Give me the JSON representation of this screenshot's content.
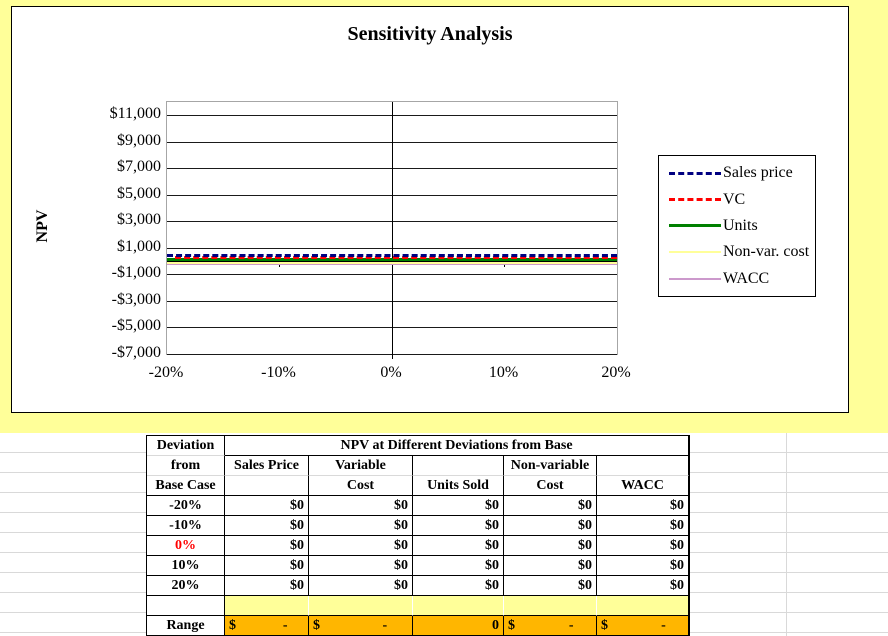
{
  "chart": {
    "title": "Sensitivity Analysis",
    "y_axis": {
      "title": "NPV",
      "labels": [
        "$11,000",
        "$9,000",
        "$7,000",
        "$5,000",
        "$3,000",
        "$1,000",
        "-$1,000",
        "-$3,000",
        "-$5,000",
        "-$7,000"
      ]
    },
    "x_axis": {
      "labels": [
        "-20%",
        "-10%",
        "0%",
        "10%",
        "20%"
      ]
    },
    "legend": [
      {
        "label": "Sales price",
        "color": "#000080",
        "style": "dashed",
        "weight": 3
      },
      {
        "label": "VC",
        "color": "#FF0000",
        "style": "dashed",
        "weight": 3
      },
      {
        "label": "Units",
        "color": "#008000",
        "style": "solid",
        "weight": 3
      },
      {
        "label": "Non-var. cost",
        "color": "#FFFF99",
        "style": "solid",
        "weight": 2
      },
      {
        "label": "WACC",
        "color": "#CC99CC",
        "style": "solid",
        "weight": 2
      }
    ]
  },
  "chart_data": {
    "type": "line",
    "title": "Sensitivity Analysis",
    "x": [
      -0.2,
      -0.1,
      0.0,
      0.1,
      0.2
    ],
    "x_tick_labels": [
      "-20%",
      "-10%",
      "0%",
      "10%",
      "20%"
    ],
    "ylabel": "NPV",
    "ylim": [
      -7000,
      12000
    ],
    "ytick_interval": 2000,
    "grid": "horizontal",
    "legend_position": "right",
    "series": [
      {
        "name": "Sales price",
        "values": [
          0,
          0,
          0,
          0,
          0
        ],
        "color": "#000080",
        "style": "dashed"
      },
      {
        "name": "VC",
        "values": [
          0,
          0,
          0,
          0,
          0
        ],
        "color": "#FF0000",
        "style": "dashed"
      },
      {
        "name": "Units",
        "values": [
          0,
          0,
          0,
          0,
          0
        ],
        "color": "#008000",
        "style": "solid"
      },
      {
        "name": "Non-var. cost",
        "values": [
          0,
          0,
          0,
          0,
          0
        ],
        "color": "#FFFF99",
        "style": "solid"
      },
      {
        "name": "WACC",
        "values": [
          0,
          0,
          0,
          0,
          0
        ],
        "color": "#CC99CC",
        "style": "solid"
      }
    ]
  },
  "table": {
    "header_row1": {
      "col1": "Deviation",
      "merged": "NPV at Different Deviations from Base"
    },
    "header_row2": [
      "from",
      "Sales Price",
      "Variable",
      "",
      "Non-variable",
      ""
    ],
    "header_row3": [
      "Base Case",
      "",
      "Cost",
      "Units Sold",
      "Cost",
      "WACC"
    ],
    "rows": [
      {
        "label": "-20%",
        "highlight": false,
        "values": [
          "$0",
          "$0",
          "$0",
          "$0",
          "$0"
        ]
      },
      {
        "label": "-10%",
        "highlight": false,
        "values": [
          "$0",
          "$0",
          "$0",
          "$0",
          "$0"
        ]
      },
      {
        "label": "0%",
        "highlight": true,
        "values": [
          "$0",
          "$0",
          "$0",
          "$0",
          "$0"
        ]
      },
      {
        "label": "10%",
        "highlight": false,
        "values": [
          "$0",
          "$0",
          "$0",
          "$0",
          "$0"
        ]
      },
      {
        "label": "20%",
        "highlight": false,
        "values": [
          "$0",
          "$0",
          "$0",
          "$0",
          "$0"
        ]
      }
    ],
    "range_row": {
      "label": "Range",
      "cells": [
        "$ -",
        "$ -",
        "0",
        "$ -",
        "$ -"
      ]
    },
    "colors": {
      "highlight_text": "#FF0000",
      "spacer_fill": "#FFFF99",
      "range_fill": "#FFB600"
    }
  }
}
